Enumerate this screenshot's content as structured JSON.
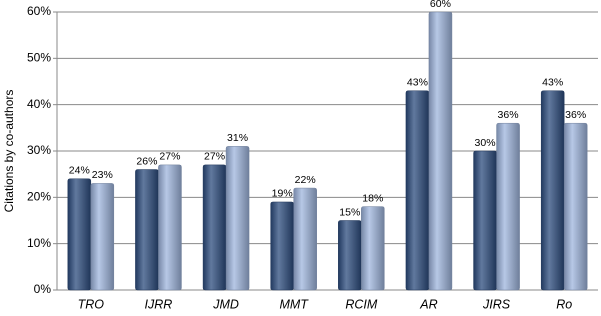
{
  "chart_data": {
    "type": "bar",
    "y_label": "Citations by co-authors",
    "categories": [
      "TRO",
      "IJRR",
      "JMD",
      "MMT",
      "RCIM",
      "AR",
      "JIRS",
      "Ro"
    ],
    "series": [
      {
        "color": "#2c4c7e",
        "values": [
          24,
          26,
          27,
          19,
          15,
          43,
          30,
          43
        ],
        "value_labels": [
          "24%",
          "26%",
          "27%",
          "19%",
          "15%",
          "43%",
          "30%",
          "43%"
        ]
      },
      {
        "color": "#9fb5de",
        "values": [
          23,
          27,
          31,
          22,
          18,
          60,
          36,
          36
        ],
        "value_labels": [
          "23%",
          "27%",
          "31%",
          "22%",
          "18%",
          "60%",
          "36%",
          "36%"
        ]
      }
    ],
    "ylim": [
      0,
      60
    ],
    "yticks": [
      {
        "value": 0,
        "label": "0%"
      },
      {
        "value": 10,
        "label": "10%"
      },
      {
        "value": 20,
        "label": "20%"
      },
      {
        "value": 30,
        "label": "30%"
      },
      {
        "value": 40,
        "label": "40%"
      },
      {
        "value": 50,
        "label": "50%"
      },
      {
        "value": 60,
        "label": "60%"
      }
    ],
    "grid": true
  }
}
